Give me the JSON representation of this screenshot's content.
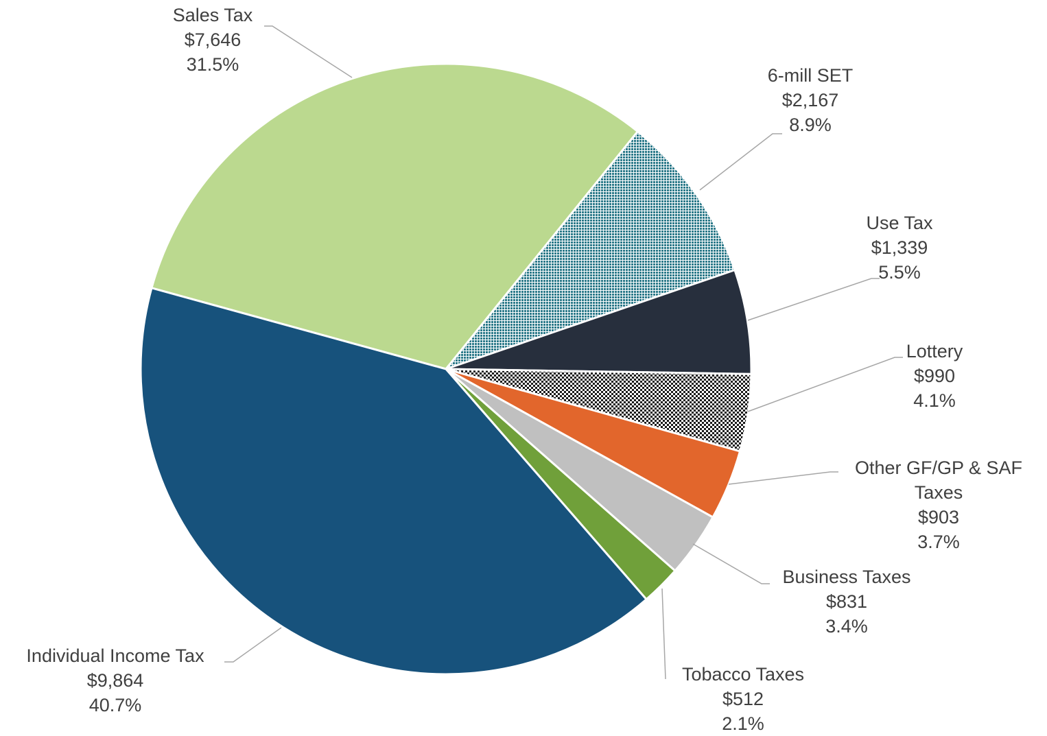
{
  "chart_data": {
    "type": "pie",
    "categories": [
      "Sales Tax",
      "6-mill SET",
      "Use Tax",
      "Lottery",
      "Other GF/GP & SAF Taxes",
      "Business Taxes",
      "Tobacco Taxes",
      "Individual Income Tax"
    ],
    "values": [
      7646,
      2167,
      1339,
      990,
      903,
      831,
      512,
      9864
    ],
    "value_labels": [
      "$7,646",
      "$2,167",
      "$1,339",
      "$990",
      "$903",
      "$831",
      "$512",
      "$9,864"
    ],
    "percents": [
      31.5,
      8.9,
      5.5,
      4.1,
      3.7,
      3.4,
      2.1,
      40.7
    ],
    "percent_labels": [
      "31.5%",
      "8.9%",
      "5.5%",
      "4.1%",
      "3.7%",
      "3.4%",
      "2.1%",
      "40.7%"
    ],
    "colors": [
      "#bbd98f",
      "#2c7a8a",
      "#272f3d",
      "#1a1a1a",
      "#e2662c",
      "#c0c0c0",
      "#70a03a",
      "#17527c"
    ],
    "patterns": [
      "solid",
      "dots",
      "solid",
      "checker",
      "solid",
      "solid",
      "solid",
      "solid"
    ]
  }
}
